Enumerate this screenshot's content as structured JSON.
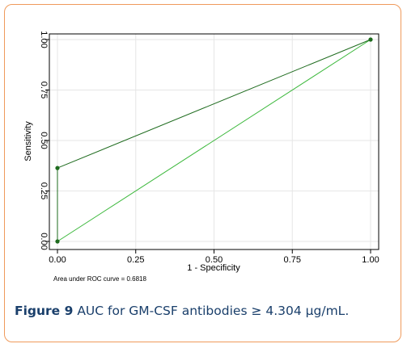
{
  "caption": {
    "label": "Figure 9",
    "text": "AUC for GM-CSF antibodies ≥ 4.304 µg/mL."
  },
  "colors": {
    "frame": "#ef9a5b",
    "caption": "#1a3f6b",
    "roc_curve": "#1e6b1e",
    "reference_line": "#3cb83c",
    "grid": "#e6e6e6"
  },
  "chart_data": {
    "type": "line",
    "xlabel": "1 - Specificity",
    "ylabel": "Sensitivity",
    "xlim": [
      0,
      1
    ],
    "ylim": [
      0,
      1
    ],
    "x_ticks": [
      0,
      0.25,
      0.5,
      0.75,
      1
    ],
    "x_tick_labels": [
      "0.00",
      "0.25",
      "0.50",
      "0.75",
      "1.00"
    ],
    "y_ticks": [
      0,
      0.25,
      0.5,
      0.75,
      1
    ],
    "y_tick_labels": [
      "0.00",
      "0.25",
      "0.50",
      "0.75",
      "1.00"
    ],
    "grid": true,
    "annotation": "Area under ROC curve = 0.6818",
    "series": [
      {
        "points": [
          [
            0,
            0
          ],
          [
            0,
            0.3636
          ],
          [
            1,
            1
          ]
        ],
        "markers": true
      },
      {
        "points": [
          [
            0,
            0
          ],
          [
            1,
            1
          ]
        ],
        "markers": false
      }
    ]
  }
}
